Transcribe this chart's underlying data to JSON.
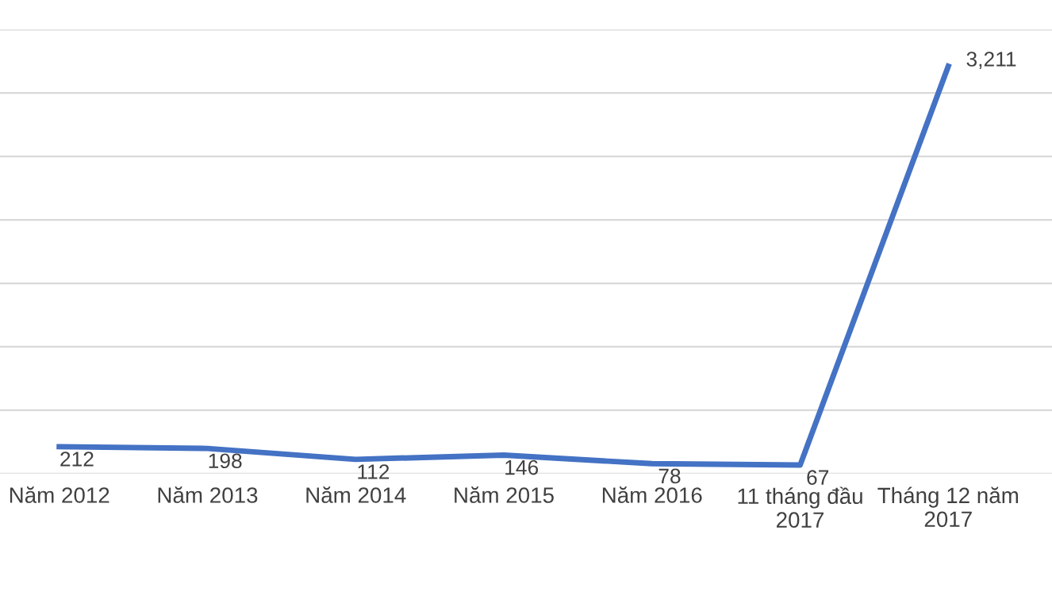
{
  "chart_data": {
    "type": "line",
    "categories": [
      "Năm 2012",
      "Năm 2013",
      "Năm 2014",
      "Năm 2015",
      "Năm 2016",
      "11 tháng đầu\n2017",
      "Tháng 12 năm\n2017"
    ],
    "series": [
      {
        "color": "#4472c4",
        "values": [
          212,
          198,
          112,
          146,
          78,
          67,
          3211
        ],
        "value_labels": [
          "212",
          "198",
          "112",
          "146",
          "78",
          "67",
          "3,211"
        ]
      }
    ],
    "ylim": [
      0,
      3500
    ],
    "yticks": [
      {
        "value": 0,
        "label": null
      },
      {
        "value": 500,
        "label": null
      },
      {
        "value": 1000,
        "label": null
      },
      {
        "value": 1500,
        "label": null
      },
      {
        "value": 2000,
        "label": null
      },
      {
        "value": 2500,
        "label": null
      },
      {
        "value": 3000,
        "label": null
      },
      {
        "value": 3500,
        "label": null
      }
    ],
    "tick_labels": "x",
    "grid": "y",
    "marker": "none",
    "line_style": "solid"
  }
}
